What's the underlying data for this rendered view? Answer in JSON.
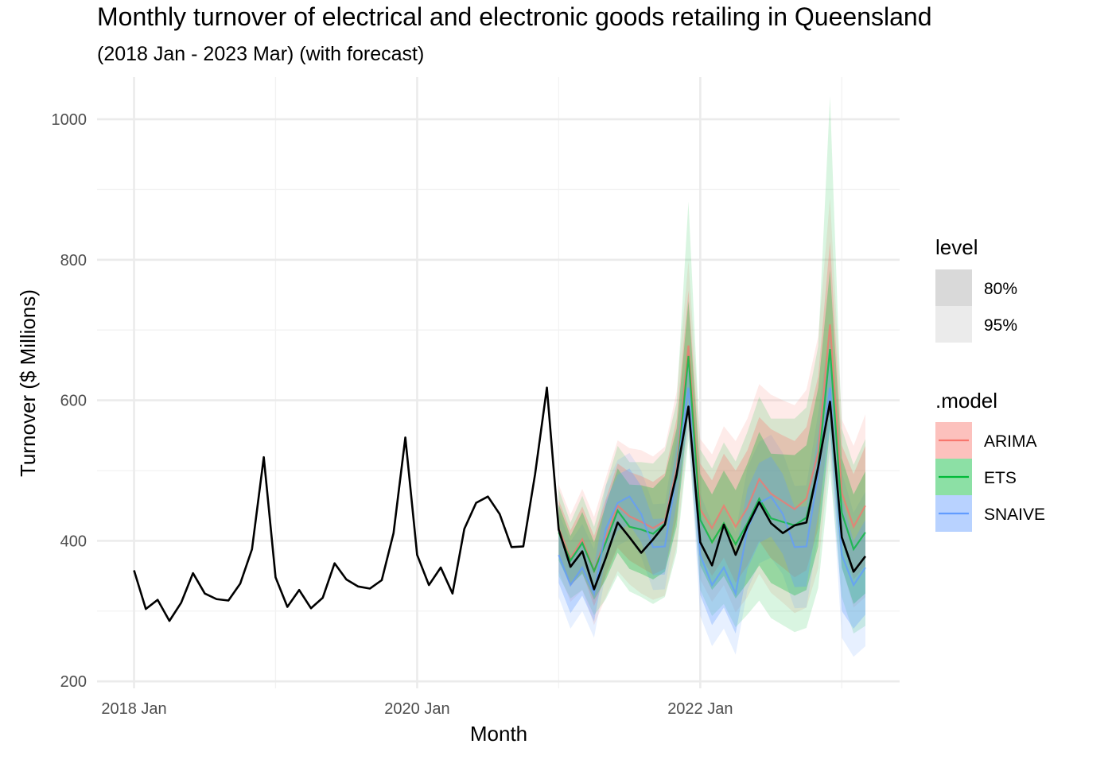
{
  "chart_data": {
    "type": "line",
    "title": "Monthly turnover of electrical and electronic goods retailing in Queensland",
    "subtitle": "(2018 Jan - 2023 Mar) (with forecast)",
    "xlabel": "Month",
    "ylabel": "Turnover ($ Millions)",
    "ylim": [
      190,
      1060
    ],
    "x_tick_labels": [
      "2018 Jan",
      "2020 Jan",
      "2022 Jan"
    ],
    "y_ticks": [
      200,
      400,
      600,
      800,
      1000
    ],
    "grid": true,
    "legend": {
      "placement": "right",
      "level_title": "level",
      "level_items": [
        {
          "label": "80%",
          "color": "#d9d9d9"
        },
        {
          "label": "95%",
          "color": "#ebebeb"
        }
      ],
      "model_title": ".model",
      "model_items": [
        {
          "label": "ARIMA",
          "color": "#F8766D"
        },
        {
          "label": "ETS",
          "color": "#00BA38"
        },
        {
          "label": "SNAIVE",
          "color": "#619CFF"
        }
      ]
    },
    "actual": {
      "start": "2018-01",
      "values": [
        358,
        303,
        316,
        286,
        312,
        354,
        325,
        317,
        315,
        339,
        388,
        519,
        348,
        306,
        330,
        304,
        319,
        368,
        345,
        335,
        332,
        344,
        411,
        547,
        380,
        337,
        362,
        325,
        417,
        454,
        463,
        438,
        391,
        392,
        495,
        618,
        416,
        363,
        385,
        331,
        376,
        426,
        405,
        383,
        402,
        423,
        495,
        591,
        398,
        365,
        423,
        380,
        421,
        455,
        425,
        411,
        422,
        426,
        505,
        598,
        405,
        356,
        378
      ]
    },
    "forecast_start": "2021-01",
    "series": [
      {
        "name": "ARIMA",
        "color": "#F8766D",
        "mean": [
          418,
          375,
          402,
          357,
          405,
          450,
          435,
          427,
          418,
          428,
          502,
          678,
          445,
          418,
          450,
          420,
          447,
          488,
          467,
          456,
          445,
          460,
          526,
          708,
          468,
          420,
          450
        ],
        "lo80": [
          378,
          335,
          355,
          307,
          350,
          390,
          372,
          362,
          352,
          360,
          430,
          600,
          380,
          350,
          376,
          340,
          365,
          400,
          375,
          362,
          348,
          358,
          418,
          590,
          400,
          345,
          365
        ],
        "hi80": [
          458,
          415,
          449,
          407,
          460,
          510,
          498,
          492,
          484,
          496,
          574,
          756,
          510,
          486,
          524,
          500,
          529,
          576,
          559,
          550,
          542,
          562,
          634,
          826,
          536,
          495,
          535
        ],
        "lo95": [
          356,
          313,
          330,
          280,
          320,
          357,
          338,
          325,
          316,
          322,
          392,
          558,
          345,
          313,
          337,
          298,
          320,
          353,
          326,
          312,
          297,
          305,
          361,
          528,
          363,
          305,
          320
        ],
        "hi95": [
          480,
          437,
          474,
          434,
          490,
          543,
          532,
          529,
          520,
          534,
          612,
          798,
          545,
          523,
          563,
          542,
          574,
          623,
          608,
          600,
          593,
          615,
          691,
          888,
          573,
          535,
          580
        ]
      },
      {
        "name": "ETS",
        "color": "#00BA38",
        "mean": [
          412,
          372,
          397,
          357,
          398,
          443,
          420,
          416,
          410,
          424,
          490,
          663,
          430,
          398,
          425,
          395,
          425,
          460,
          432,
          427,
          422,
          433,
          505,
          673,
          440,
          388,
          412
        ],
        "lo80": [
          372,
          337,
          353,
          316,
          345,
          383,
          360,
          353,
          345,
          356,
          420,
          585,
          365,
          330,
          350,
          318,
          340,
          365,
          340,
          331,
          322,
          330,
          392,
          560,
          362,
          310,
          325
        ],
        "hi80": [
          452,
          407,
          441,
          398,
          451,
          503,
          480,
          479,
          475,
          492,
          560,
          741,
          495,
          466,
          500,
          472,
          510,
          555,
          524,
          523,
          522,
          536,
          618,
          786,
          518,
          466,
          499
        ],
        "lo95": [
          350,
          318,
          330,
          294,
          317,
          351,
          328,
          320,
          310,
          320,
          383,
          543,
          330,
          293,
          310,
          277,
          295,
          315,
          290,
          280,
          270,
          276,
          333,
          500,
          320,
          268,
          279
        ],
        "hi95": [
          474,
          426,
          464,
          420,
          479,
          535,
          512,
          512,
          510,
          528,
          597,
          883,
          530,
          503,
          540,
          513,
          555,
          605,
          574,
          574,
          574,
          590,
          677,
          1033,
          560,
          508,
          545
        ]
      },
      {
        "name": "SNAIVE",
        "color": "#619CFF",
        "mean": [
          380,
          337,
          362,
          325,
          417,
          454,
          463,
          438,
          391,
          392,
          495,
          618,
          380,
          337,
          362,
          325,
          417,
          454,
          463,
          438,
          391,
          392,
          495,
          618,
          380,
          337,
          362
        ],
        "lo80": [
          340,
          297,
          322,
          285,
          377,
          414,
          423,
          398,
          351,
          352,
          455,
          578,
          323,
          280,
          305,
          268,
          360,
          397,
          406,
          381,
          334,
          335,
          438,
          561,
          300,
          275,
          295
        ],
        "hi80": [
          420,
          377,
          402,
          365,
          457,
          494,
          503,
          478,
          431,
          432,
          535,
          658,
          437,
          394,
          419,
          382,
          474,
          511,
          520,
          495,
          448,
          449,
          552,
          675,
          460,
          400,
          430
        ],
        "lo95": [
          320,
          275,
          300,
          262,
          355,
          393,
          402,
          377,
          330,
          331,
          433,
          557,
          293,
          250,
          275,
          238,
          330,
          368,
          376,
          352,
          304,
          305,
          408,
          531,
          262,
          235,
          250
        ],
        "hi95": [
          440,
          399,
          424,
          388,
          479,
          515,
          525,
          500,
          452,
          453,
          557,
          679,
          467,
          424,
          449,
          412,
          504,
          541,
          551,
          525,
          478,
          479,
          582,
          706,
          498,
          440,
          470
        ]
      }
    ]
  }
}
